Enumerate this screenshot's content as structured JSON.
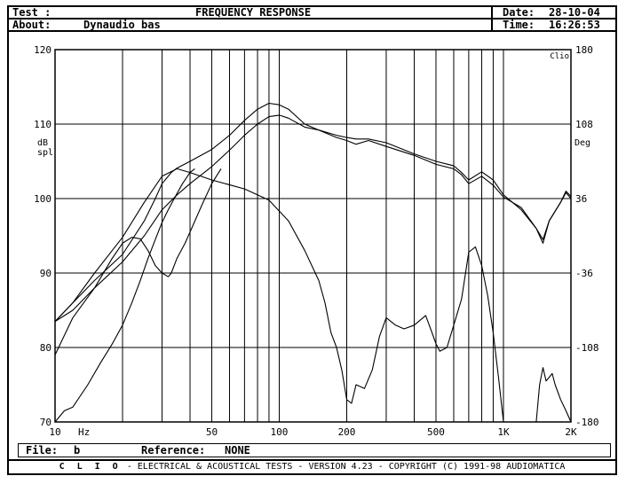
{
  "header": {
    "test_label": "Test :",
    "title": "FREQUENCY RESPONSE",
    "about_label": "About:",
    "about_value": "Dynaudio bas",
    "date_label": "Date:",
    "date_value": "28-10-04",
    "time_label": "Time:",
    "time_value": "16:26:53"
  },
  "footer": {
    "file_label": "File:",
    "file_value": "b",
    "reference_label": "Reference:",
    "reference_value": "NONE"
  },
  "brand": {
    "logo": "C L I O",
    "text": "-  ELECTRICAL & ACOUSTICAL TESTS  -  VERSION 4.23  -  COPYRIGHT (C) 1991-98 AUDIOMATICA"
  },
  "chart_data": {
    "type": "line",
    "title": "FREQUENCY RESPONSE",
    "xscale": "log",
    "xlim": [
      10,
      2000
    ],
    "ylim": [
      70,
      120
    ],
    "y2lim": [
      -180,
      180
    ],
    "grid": true,
    "xlabel": "Hz",
    "ylabel": "dB spl",
    "y2label": "Deg",
    "corner_label": "Clio",
    "x_ticks": [
      {
        "value": 10,
        "label": "10"
      },
      {
        "value": 50,
        "label": "50"
      },
      {
        "value": 100,
        "label": "100"
      },
      {
        "value": 200,
        "label": "200"
      },
      {
        "value": 500,
        "label": "500"
      },
      {
        "value": 1000,
        "label": "1K"
      },
      {
        "value": 2000,
        "label": "2K"
      }
    ],
    "y_ticks": [
      "70",
      "80",
      "90",
      "100",
      "110",
      "120"
    ],
    "y2_ticks": [
      "-180",
      "-108",
      "-36",
      "36",
      "108",
      "180"
    ],
    "series": [
      {
        "points": [
          [
            10,
            83.5
          ],
          [
            12,
            85
          ],
          [
            15,
            88
          ],
          [
            20,
            91.5
          ],
          [
            25,
            95
          ],
          [
            30,
            98.5
          ],
          [
            35,
            100.5
          ],
          [
            40,
            102
          ],
          [
            50,
            104.3
          ],
          [
            60,
            106.5
          ],
          [
            70,
            108.5
          ],
          [
            80,
            110
          ],
          [
            90,
            111
          ],
          [
            100,
            111.2
          ],
          [
            110,
            110.8
          ],
          [
            130,
            109.6
          ],
          [
            150,
            109.2
          ],
          [
            180,
            108.2
          ],
          [
            200,
            107.8
          ],
          [
            220,
            107.3
          ],
          [
            250,
            107.8
          ],
          [
            300,
            107
          ],
          [
            400,
            105.8
          ],
          [
            500,
            104.6
          ],
          [
            600,
            104
          ],
          [
            650,
            103.2
          ],
          [
            700,
            102
          ],
          [
            800,
            103
          ],
          [
            900,
            101.8
          ],
          [
            1000,
            100.2
          ],
          [
            1200,
            98.8
          ],
          [
            1400,
            96
          ],
          [
            1500,
            94
          ],
          [
            1600,
            97
          ],
          [
            1800,
            99.5
          ],
          [
            1900,
            100.8
          ],
          [
            2000,
            100
          ]
        ]
      },
      {
        "points": [
          [
            10,
            83.5
          ],
          [
            12,
            86
          ],
          [
            15,
            89
          ],
          [
            20,
            92.5
          ],
          [
            25,
            97
          ],
          [
            28,
            100
          ],
          [
            30,
            102
          ],
          [
            33,
            103.5
          ],
          [
            35,
            104.1
          ],
          [
            40,
            105
          ],
          [
            50,
            106.6
          ],
          [
            60,
            108.5
          ],
          [
            70,
            110.5
          ],
          [
            80,
            112
          ],
          [
            90,
            112.8
          ],
          [
            100,
            112.6
          ],
          [
            110,
            112
          ],
          [
            130,
            110
          ],
          [
            150,
            109.2
          ],
          [
            180,
            108.5
          ],
          [
            200,
            108.2
          ],
          [
            220,
            108
          ],
          [
            250,
            108
          ],
          [
            300,
            107.5
          ],
          [
            400,
            106
          ],
          [
            500,
            105
          ],
          [
            600,
            104.4
          ],
          [
            650,
            103.5
          ],
          [
            700,
            102.5
          ],
          [
            800,
            103.6
          ],
          [
            900,
            102.5
          ],
          [
            1000,
            100.5
          ],
          [
            1200,
            98.5
          ],
          [
            1400,
            96
          ],
          [
            1500,
            94.5
          ],
          [
            1600,
            97
          ],
          [
            1800,
            99.5
          ],
          [
            1900,
            101
          ],
          [
            2000,
            100.3
          ]
        ]
      },
      {
        "points": [
          [
            10,
            83.5
          ],
          [
            12,
            86
          ],
          [
            15,
            90
          ],
          [
            20,
            94.8
          ],
          [
            25,
            99.5
          ],
          [
            30,
            103
          ],
          [
            35,
            104
          ],
          [
            40,
            103.5
          ],
          [
            50,
            102.5
          ],
          [
            70,
            101.3
          ],
          [
            90,
            99.8
          ],
          [
            110,
            97
          ],
          [
            130,
            93
          ],
          [
            150,
            89
          ],
          [
            160,
            86
          ],
          [
            170,
            82
          ],
          [
            180,
            80
          ],
          [
            190,
            77
          ],
          [
            200,
            73
          ],
          [
            210,
            72.5
          ],
          [
            220,
            75
          ],
          [
            240,
            74.5
          ],
          [
            260,
            77
          ],
          [
            280,
            81.5
          ],
          [
            300,
            84
          ],
          [
            330,
            83
          ],
          [
            360,
            82.5
          ],
          [
            400,
            83
          ],
          [
            450,
            84.3
          ],
          [
            480,
            82
          ],
          [
            500,
            80.5
          ],
          [
            520,
            79.5
          ],
          [
            560,
            80
          ],
          [
            600,
            83
          ],
          [
            650,
            86.5
          ],
          [
            700,
            92.8
          ],
          [
            750,
            93.5
          ],
          [
            800,
            91
          ],
          [
            850,
            87
          ],
          [
            900,
            82
          ],
          [
            950,
            76
          ],
          [
            1000,
            70
          ]
        ]
      },
      {
        "points": [
          [
            10,
            70
          ],
          [
            11,
            71.5
          ],
          [
            12,
            72
          ],
          [
            14,
            75
          ],
          [
            16,
            78
          ],
          [
            18,
            80.5
          ],
          [
            20,
            83
          ],
          [
            22,
            86
          ],
          [
            24,
            89
          ],
          [
            26,
            92
          ],
          [
            28,
            94.5
          ],
          [
            30,
            96.8
          ],
          [
            32,
            98.5
          ],
          [
            34,
            100
          ],
          [
            37,
            102
          ],
          [
            40,
            103.5
          ],
          [
            42,
            104
          ]
        ]
      },
      {
        "points": [
          [
            10,
            79
          ],
          [
            12,
            84
          ],
          [
            15,
            88
          ],
          [
            18,
            92
          ],
          [
            20,
            94
          ],
          [
            22,
            94.8
          ],
          [
            24,
            94.6
          ],
          [
            26,
            93
          ],
          [
            28,
            91
          ],
          [
            30,
            90
          ],
          [
            32,
            89.5
          ],
          [
            33,
            90
          ],
          [
            35,
            92
          ],
          [
            38,
            94
          ],
          [
            40,
            95.5
          ],
          [
            45,
            99
          ],
          [
            50,
            102
          ],
          [
            55,
            104
          ]
        ]
      },
      {
        "points": [
          [
            1400,
            70
          ],
          [
            1450,
            75
          ],
          [
            1500,
            77.3
          ],
          [
            1550,
            75.5
          ],
          [
            1600,
            76
          ],
          [
            1650,
            76.5
          ],
          [
            1700,
            75
          ],
          [
            1800,
            73
          ],
          [
            1900,
            71.5
          ],
          [
            2000,
            70
          ]
        ]
      }
    ]
  }
}
